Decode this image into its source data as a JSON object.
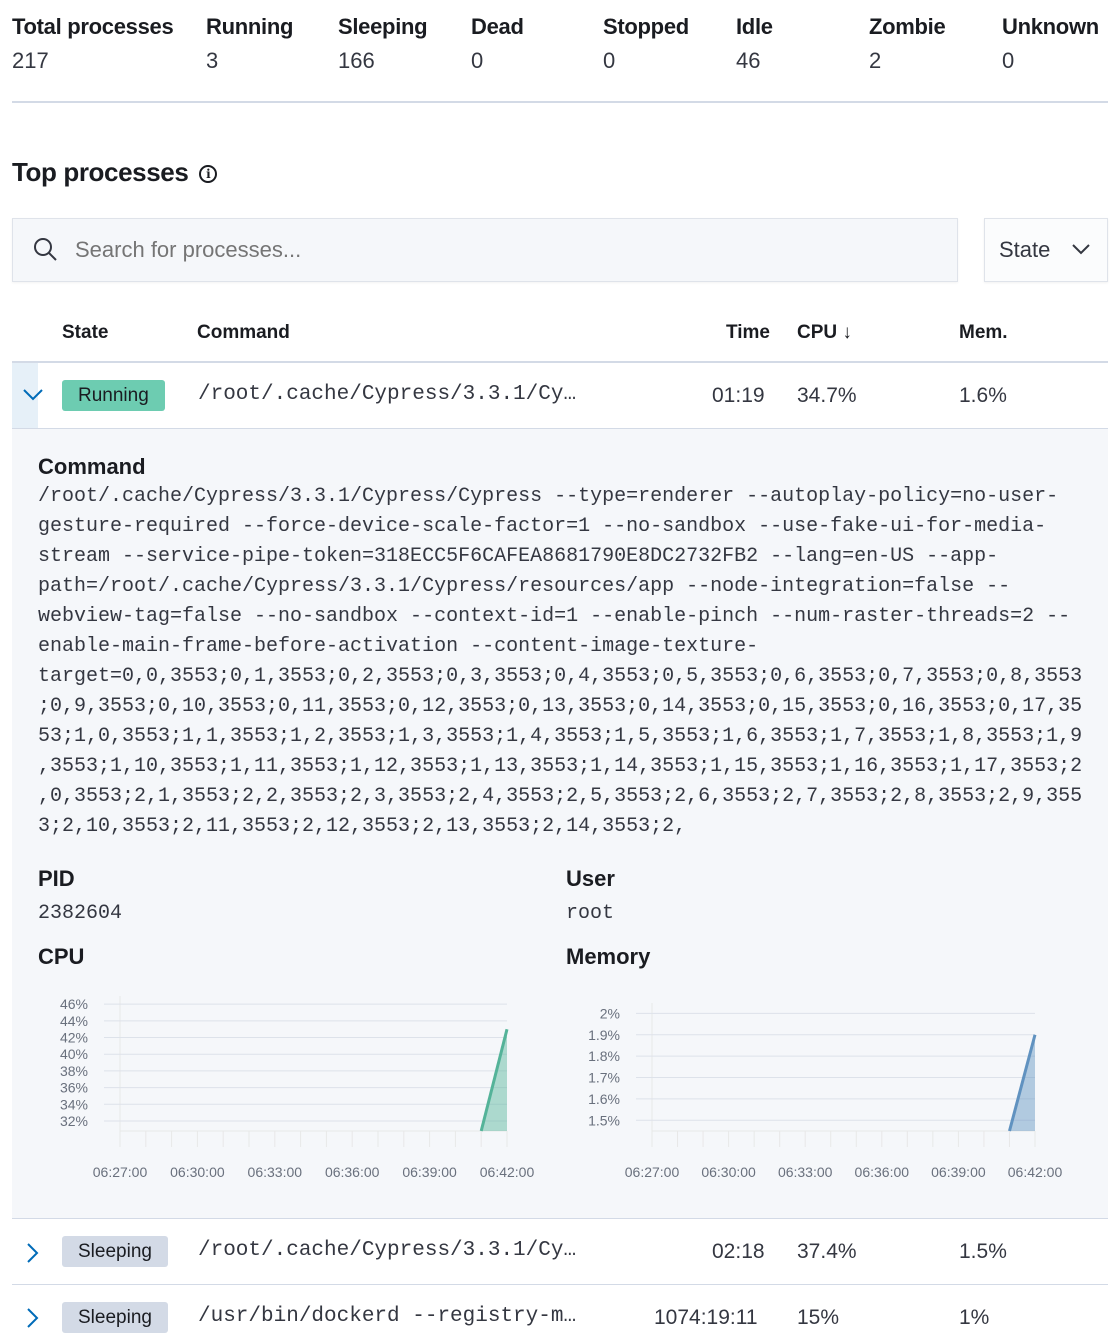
{
  "summary": [
    {
      "label": "Total processes",
      "value": "217"
    },
    {
      "label": "Running",
      "value": "3"
    },
    {
      "label": "Sleeping",
      "value": "166"
    },
    {
      "label": "Dead",
      "value": "0"
    },
    {
      "label": "Stopped",
      "value": "0"
    },
    {
      "label": "Idle",
      "value": "46"
    },
    {
      "label": "Zombie",
      "value": "2"
    },
    {
      "label": "Unknown",
      "value": "0"
    }
  ],
  "top": {
    "title": "Top processes",
    "info_icon": "info-icon"
  },
  "search": {
    "placeholder": "Search for processes..."
  },
  "state_filter": {
    "label": "State"
  },
  "table": {
    "headers": {
      "state": "State",
      "command": "Command",
      "time": "Time",
      "cpu": "CPU",
      "mem": "Mem."
    },
    "sort": "cpu-descending",
    "rows": [
      {
        "state": "Running",
        "command": "/root/.cache/Cypress/3.3.1/Cy…",
        "time": "01:19",
        "cpu": "34.7%",
        "mem": "1.6%",
        "expanded": true
      },
      {
        "state": "Sleeping",
        "command": "/root/.cache/Cypress/3.3.1/Cy…",
        "time": "02:18",
        "cpu": "37.4%",
        "mem": "1.5%",
        "expanded": false
      },
      {
        "state": "Sleeping",
        "command": "/usr/bin/dockerd --registry-m…",
        "time": "1074:19:11",
        "cpu": "15%",
        "mem": "1%",
        "expanded": false
      }
    ]
  },
  "detail": {
    "command_label": "Command",
    "command": "/root/.cache/Cypress/3.3.1/Cypress/Cypress --type=renderer --autoplay-policy=no-user-gesture-required --force-device-scale-factor=1 --no-sandbox --use-fake-ui-for-media-stream --service-pipe-token=318ECC5F6CAFEA8681790E8DC2732FB2 --lang=en-US --app-path=/root/.cache/Cypress/3.3.1/Cypress/resources/app --node-integration=false --webview-tag=false --no-sandbox --context-id=1 --enable-pinch --num-raster-threads=2 --enable-main-frame-before-activation --content-image-texture-target=0,0,3553;0,1,3553;0,2,3553;0,3,3553;0,4,3553;0,5,3553;0,6,3553;0,7,3553;0,8,3553;0,9,3553;0,10,3553;0,11,3553;0,12,3553;0,13,3553;0,14,3553;0,15,3553;0,16,3553;0,17,3553;1,0,3553;1,1,3553;1,2,3553;1,3,3553;1,4,3553;1,5,3553;1,6,3553;1,7,3553;1,8,3553;1,9,3553;1,10,3553;1,11,3553;1,12,3553;1,13,3553;1,14,3553;1,15,3553;1,16,3553;1,17,3553;2,0,3553;2,1,3553;2,2,3553;2,3,3553;2,4,3553;2,5,3553;2,6,3553;2,7,3553;2,8,3553;2,9,3553;2,10,3553;2,11,3553;2,12,3553;2,13,3553;2,14,3553;2,",
    "pid_label": "PID",
    "pid": "2382604",
    "user_label": "User",
    "user": "root",
    "cpu_label": "CPU",
    "memory_label": "Memory"
  },
  "colors": {
    "running": "#6dccb1",
    "sleeping": "#d3dae6",
    "cpu_series": "#54b399",
    "mem_series": "#6092c0",
    "link": "#006bb8"
  },
  "chart_data": [
    {
      "type": "area",
      "title": "CPU",
      "x": [
        "06:41:00",
        "06:42:00"
      ],
      "values": [
        30.8,
        43
      ],
      "unit": "%",
      "ylim": [
        30.8,
        46.5
      ],
      "yticks": [
        "46%",
        "44%",
        "42%",
        "40%",
        "38%",
        "36%",
        "34%",
        "32%"
      ],
      "ytick_values": [
        46,
        44,
        42,
        40,
        38,
        36,
        34,
        32
      ],
      "xticks": [
        "06:27:00",
        "06:30:00",
        "06:33:00",
        "06:36:00",
        "06:39:00",
        "06:42:00"
      ],
      "xlim": [
        "06:27:00",
        "06:42:00"
      ],
      "grid": true
    },
    {
      "type": "area",
      "title": "Memory",
      "x": [
        "06:41:00",
        "06:42:00"
      ],
      "values": [
        1.45,
        1.9
      ],
      "unit": "%",
      "ylim": [
        1.45,
        2.03
      ],
      "yticks": [
        "2%",
        "1.9%",
        "1.8%",
        "1.7%",
        "1.6%",
        "1.5%"
      ],
      "ytick_values": [
        2,
        1.9,
        1.8,
        1.7,
        1.6,
        1.5
      ],
      "xticks": [
        "06:27:00",
        "06:30:00",
        "06:33:00",
        "06:36:00",
        "06:39:00",
        "06:42:00"
      ],
      "xlim": [
        "06:27:00",
        "06:42:00"
      ],
      "grid": true
    }
  ]
}
